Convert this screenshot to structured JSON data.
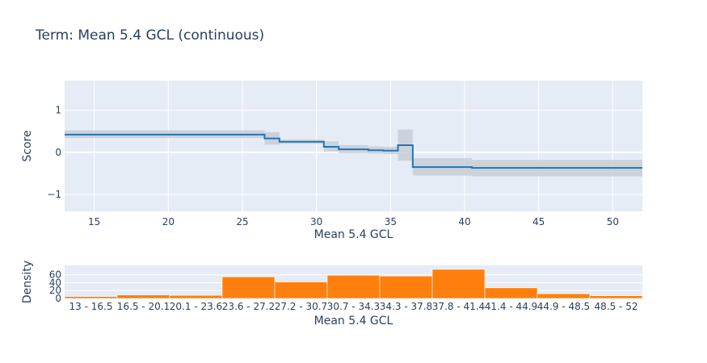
{
  "title": "Term: Mean 5.4 GCL (continuous)",
  "colors": {
    "plot_bg": "#e5ecf6",
    "grid": "#ffffff",
    "score_line": "#1f77b4",
    "band": "#c8ced6",
    "bar": "#ff7f0e",
    "text": "#2a3f5f"
  },
  "chart_data": [
    {
      "type": "line",
      "subtype": "step",
      "xlabel": "Mean 5.4 GCL",
      "ylabel": "Score",
      "xlim": [
        13,
        52
      ],
      "ylim": [
        -1.4,
        1.7
      ],
      "xticks": [
        15,
        20,
        25,
        30,
        35,
        40,
        45,
        50
      ],
      "yticks": [
        -1,
        0,
        1
      ],
      "ytick_labels": [
        "−1",
        "0",
        "1"
      ],
      "grid": true,
      "segments": [
        {
          "x0": 13,
          "x1": 26.5,
          "y": 0.42,
          "lo": 0.34,
          "hi": 0.52
        },
        {
          "x0": 26.5,
          "x1": 27.5,
          "y": 0.33,
          "lo": 0.18,
          "hi": 0.48
        },
        {
          "x0": 27.5,
          "x1": 30.5,
          "y": 0.25,
          "lo": 0.2,
          "hi": 0.3
        },
        {
          "x0": 30.5,
          "x1": 31.5,
          "y": 0.13,
          "lo": 0.02,
          "hi": 0.26
        },
        {
          "x0": 31.5,
          "x1": 33.5,
          "y": 0.07,
          "lo": -0.02,
          "hi": 0.17
        },
        {
          "x0": 33.5,
          "x1": 34.5,
          "y": 0.05,
          "lo": -0.03,
          "hi": 0.14
        },
        {
          "x0": 34.5,
          "x1": 35.5,
          "y": 0.04,
          "lo": -0.04,
          "hi": 0.13
        },
        {
          "x0": 35.5,
          "x1": 36.5,
          "y": 0.17,
          "lo": -0.2,
          "hi": 0.54
        },
        {
          "x0": 36.5,
          "x1": 40.5,
          "y": -0.35,
          "lo": -0.55,
          "hi": -0.14
        },
        {
          "x0": 40.5,
          "x1": 52,
          "y": -0.37,
          "lo": -0.57,
          "hi": -0.18
        }
      ]
    },
    {
      "type": "bar",
      "xlabel": "Mean 5.4 GCL",
      "ylabel": "Density",
      "ylim": [
        0,
        84
      ],
      "yticks": [
        0,
        20,
        40,
        60
      ],
      "grid": true,
      "categories": [
        "13 - 16.5",
        "16.5 - 20.1",
        "20.1 - 23.6",
        "23.6 - 27.2",
        "27.2 - 30.7",
        "30.7 - 34.3",
        "34.3 - 37.8",
        "37.8 - 41.4",
        "41.4 - 44.9",
        "44.9 - 48.5",
        "48.5 - 52"
      ],
      "values": [
        5,
        9,
        8,
        55,
        42,
        59,
        57,
        74,
        27,
        12,
        7
      ]
    }
  ]
}
